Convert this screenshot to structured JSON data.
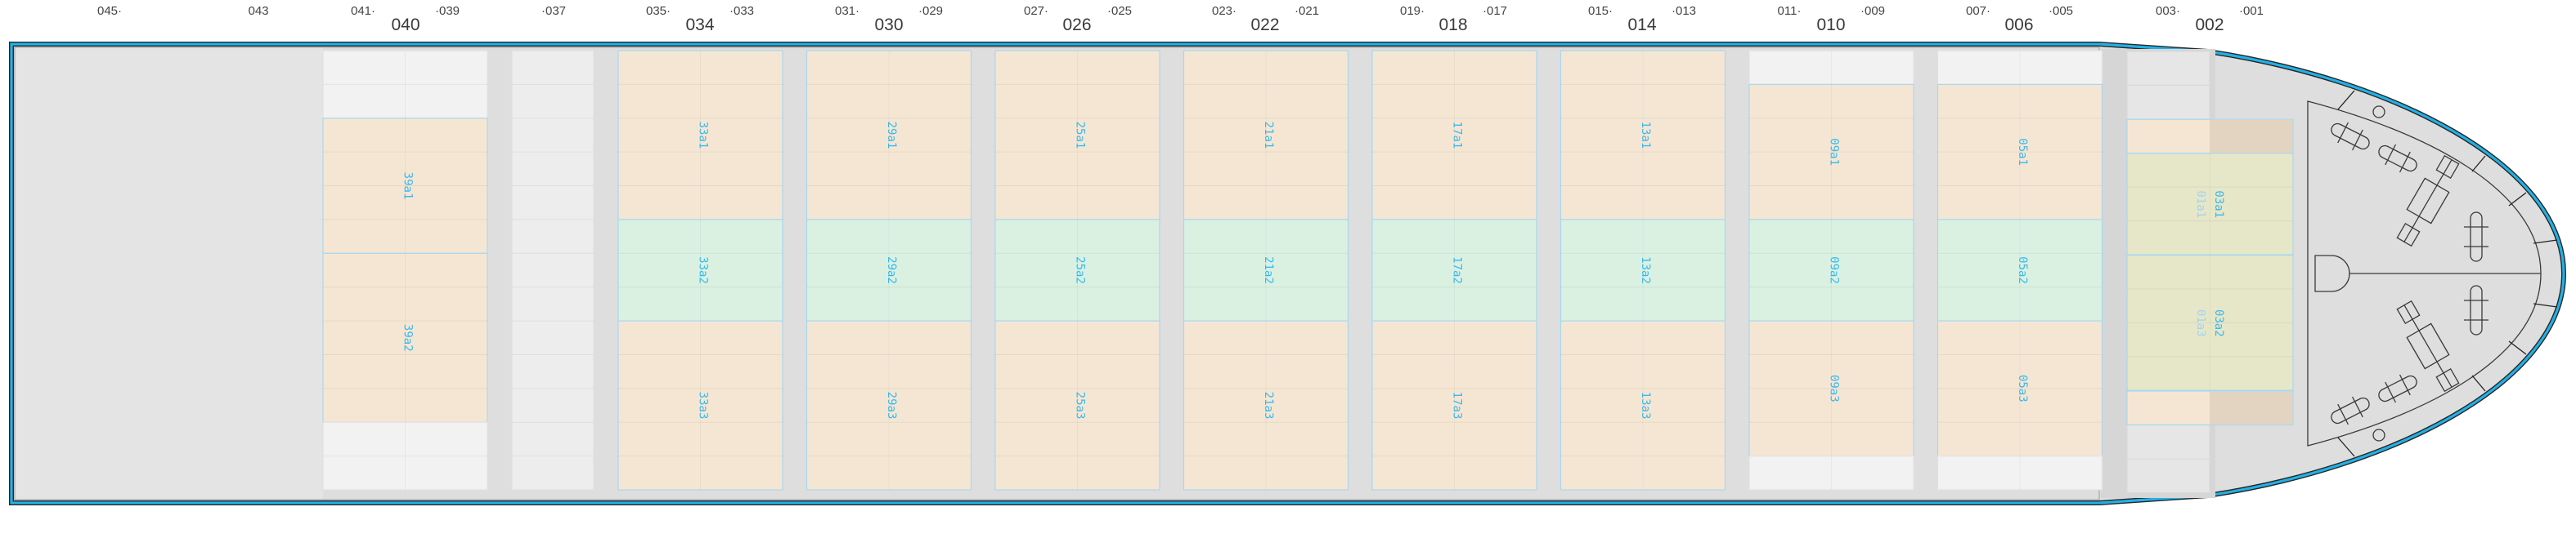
{
  "frame_labels": [
    "045·",
    "043",
    "041·",
    "·039",
    "·037",
    "035·",
    "·033",
    "031·",
    "·029",
    "027·",
    "·025",
    "023·",
    "·021",
    "019·",
    "·017",
    "015·",
    "·013",
    "011·",
    "·009",
    "007·",
    "·005",
    "003·",
    "·001"
  ],
  "bay_labels": [
    "040",
    "034",
    "030",
    "026",
    "022",
    "018",
    "014",
    "010",
    "006",
    "002"
  ],
  "colors": {
    "hull_outline": "#22b0e6",
    "cargo": "#f5e6d4",
    "reefer": "#daf1e2",
    "mixed": "#e6e6c9",
    "empty": "#f2f2f2",
    "slot_label": "#39b9ee",
    "slot_border": "#a8d8f0",
    "deck": "#d6d6d6"
  },
  "holds": [
    {
      "bay": "040",
      "blocks": [
        {
          "label": "39a1",
          "kind": "cargo"
        },
        {
          "label": "39a2",
          "kind": "cargo"
        }
      ]
    },
    {
      "bay": "037",
      "blocks": []
    },
    {
      "bay": "034",
      "blocks": [
        {
          "label": "33a1",
          "kind": "cargo"
        },
        {
          "label": "33a2",
          "kind": "reefer"
        },
        {
          "label": "33a3",
          "kind": "cargo"
        }
      ]
    },
    {
      "bay": "030",
      "blocks": [
        {
          "label": "29a1",
          "kind": "cargo"
        },
        {
          "label": "29a2",
          "kind": "reefer"
        },
        {
          "label": "29a3",
          "kind": "cargo"
        }
      ]
    },
    {
      "bay": "026",
      "blocks": [
        {
          "label": "25a1",
          "kind": "cargo"
        },
        {
          "label": "25a2",
          "kind": "reefer"
        },
        {
          "label": "25a3",
          "kind": "cargo"
        }
      ]
    },
    {
      "bay": "022",
      "blocks": [
        {
          "label": "21a1",
          "kind": "cargo"
        },
        {
          "label": "21a2",
          "kind": "reefer"
        },
        {
          "label": "21a3",
          "kind": "cargo"
        }
      ]
    },
    {
      "bay": "018",
      "blocks": [
        {
          "label": "17a1",
          "kind": "cargo"
        },
        {
          "label": "17a2",
          "kind": "reefer"
        },
        {
          "label": "17a3",
          "kind": "cargo"
        }
      ]
    },
    {
      "bay": "014",
      "blocks": [
        {
          "label": "13a1",
          "kind": "cargo"
        },
        {
          "label": "13a2",
          "kind": "reefer"
        },
        {
          "label": "13a3",
          "kind": "cargo"
        }
      ]
    },
    {
      "bay": "010",
      "blocks": [
        {
          "label": "09a1",
          "kind": "cargo"
        },
        {
          "label": "09a2",
          "kind": "reefer"
        },
        {
          "label": "09a3",
          "kind": "cargo"
        }
      ]
    },
    {
      "bay": "006",
      "blocks": [
        {
          "label": "05a1",
          "kind": "cargo"
        },
        {
          "label": "05a2",
          "kind": "reefer"
        },
        {
          "label": "05a3",
          "kind": "cargo"
        }
      ]
    },
    {
      "bay": "002",
      "blocks": [
        {
          "label": "03a1",
          "overlap_label": "01a1",
          "kind": "mixed"
        },
        {
          "label": "03a2",
          "overlap_label": "01a3",
          "kind": "mixed"
        }
      ]
    }
  ]
}
